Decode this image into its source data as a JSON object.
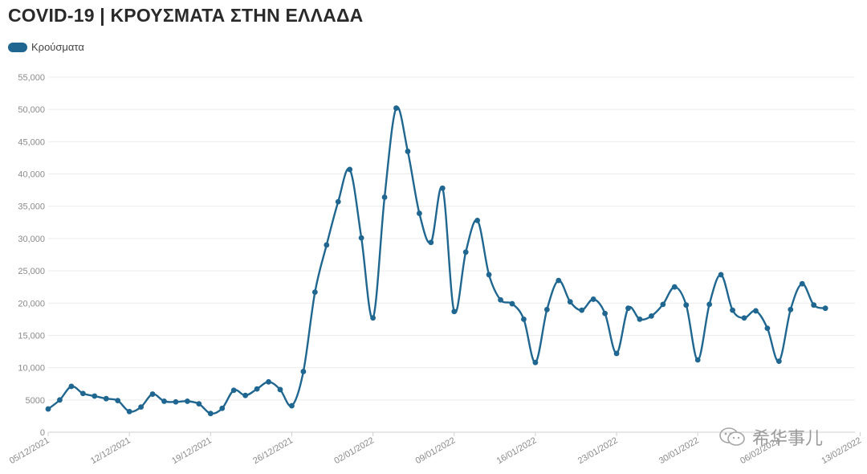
{
  "chart_data": {
    "type": "line",
    "title": "COVID-19 | ΚΡΟΥΣΜΑΤΑ ΣΤΗΝ ΕΛΛΑΔΑ",
    "legend_position": "top-left",
    "grid": true,
    "ylim": [
      0,
      55000
    ],
    "y_ticks": [
      "0",
      "5000",
      "10,000",
      "15,000",
      "20,000",
      "25,000",
      "30,000",
      "35,000",
      "40,000",
      "45,000",
      "50,000",
      "55,000"
    ],
    "x_ticks": [
      "05/12/2021",
      "12/12/2021",
      "19/12/2021",
      "26/12/2021",
      "02/01/2022",
      "09/01/2022",
      "16/01/2022",
      "23/01/2022",
      "30/01/2022",
      "06/02/2022",
      "13/02/2022"
    ],
    "color": "#1f6690",
    "series": [
      {
        "name": "Κρούσματα",
        "x": [
          "05/12/2021",
          "06/12/2021",
          "07/12/2021",
          "08/12/2021",
          "09/12/2021",
          "10/12/2021",
          "11/12/2021",
          "12/12/2021",
          "13/12/2021",
          "14/12/2021",
          "15/12/2021",
          "16/12/2021",
          "17/12/2021",
          "18/12/2021",
          "19/12/2021",
          "20/12/2021",
          "21/12/2021",
          "22/12/2021",
          "23/12/2021",
          "24/12/2021",
          "25/12/2021",
          "26/12/2021",
          "27/12/2021",
          "28/12/2021",
          "29/12/2021",
          "30/12/2021",
          "31/12/2021",
          "01/01/2022",
          "02/01/2022",
          "03/01/2022",
          "04/01/2022",
          "05/01/2022",
          "06/01/2022",
          "07/01/2022",
          "08/01/2022",
          "09/01/2022",
          "10/01/2022",
          "11/01/2022",
          "12/01/2022",
          "13/01/2022",
          "14/01/2022",
          "15/01/2022",
          "16/01/2022",
          "17/01/2022",
          "18/01/2022",
          "19/01/2022",
          "20/01/2022",
          "21/01/2022",
          "22/01/2022",
          "23/01/2022",
          "24/01/2022",
          "25/01/2022",
          "26/01/2022",
          "27/01/2022",
          "28/01/2022",
          "29/01/2022",
          "30/01/2022",
          "31/01/2022",
          "01/02/2022",
          "02/02/2022",
          "03/02/2022",
          "04/02/2022",
          "05/02/2022",
          "06/02/2022",
          "07/02/2022",
          "08/02/2022",
          "09/02/2022",
          "10/02/2022"
        ],
        "values": [
          3600,
          5000,
          7100,
          6000,
          5600,
          5200,
          4900,
          3200,
          3900,
          5900,
          4800,
          4700,
          4800,
          4400,
          2900,
          3700,
          6500,
          5700,
          6700,
          7800,
          6600,
          4100,
          9400,
          21700,
          29000,
          35700,
          40700,
          30100,
          17700,
          36400,
          50200,
          43500,
          33900,
          29400,
          37800,
          18700,
          27900,
          32800,
          24400,
          20500,
          19900,
          17500,
          10800,
          19000,
          23500,
          20200,
          18900,
          20600,
          18400,
          12200,
          19200,
          17500,
          18000,
          19800,
          22500,
          19700,
          11200,
          19800,
          24400,
          18900,
          17700,
          18800,
          16100,
          11000,
          19000,
          23000,
          19700,
          19200
        ]
      }
    ]
  },
  "watermark": "希华事儿"
}
